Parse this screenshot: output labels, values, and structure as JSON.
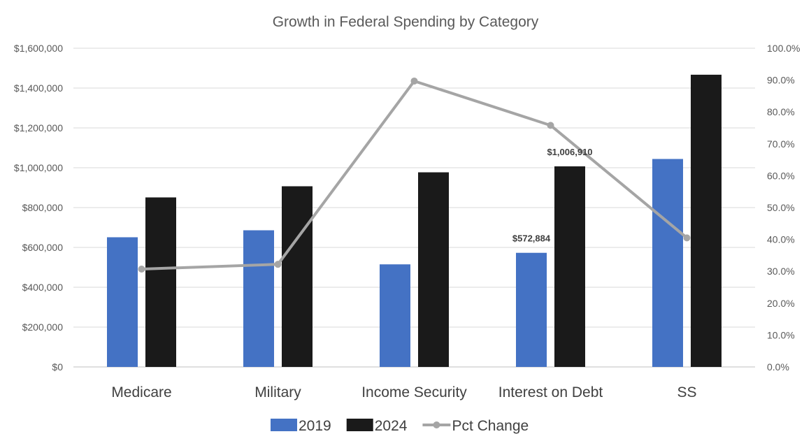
{
  "chart_data": {
    "type": "bar",
    "title": "Growth in Federal Spending by Category",
    "categories": [
      "Medicare",
      "Military",
      "Income Security",
      "Interest on Debt",
      "SS"
    ],
    "series": [
      {
        "name": "2019",
        "kind": "bar",
        "axis": "left",
        "color": "#4472C4",
        "values": [
          651000,
          686000,
          515000,
          572884,
          1044000
        ]
      },
      {
        "name": "2024",
        "kind": "bar",
        "axis": "left",
        "color": "#1A1A1A",
        "values": [
          851000,
          907000,
          977000,
          1006910,
          1467000
        ]
      },
      {
        "name": "Pct Change",
        "kind": "line",
        "axis": "right",
        "color": "#A5A5A5",
        "values": [
          30.7,
          32.2,
          89.7,
          75.8,
          40.5
        ]
      }
    ],
    "left_axis": {
      "min": 0,
      "max": 1600000,
      "step": 200000,
      "tick_labels": [
        "$0",
        "$200,000",
        "$400,000",
        "$600,000",
        "$800,000",
        "$1,000,000",
        "$1,200,000",
        "$1,400,000",
        "$1,600,000"
      ]
    },
    "right_axis": {
      "min": 0,
      "max": 100,
      "step": 10,
      "tick_labels": [
        "0.0%",
        "10.0%",
        "20.0%",
        "30.0%",
        "40.0%",
        "50.0%",
        "60.0%",
        "70.0%",
        "80.0%",
        "90.0%",
        "100.0%"
      ]
    },
    "data_labels": [
      {
        "series": 0,
        "index": 3,
        "text": "$572,884"
      },
      {
        "series": 1,
        "index": 3,
        "text": "$1,006,910"
      }
    ],
    "legend": [
      "2019",
      "2024",
      "Pct Change"
    ],
    "legend_position": "bottom",
    "grid": true
  }
}
